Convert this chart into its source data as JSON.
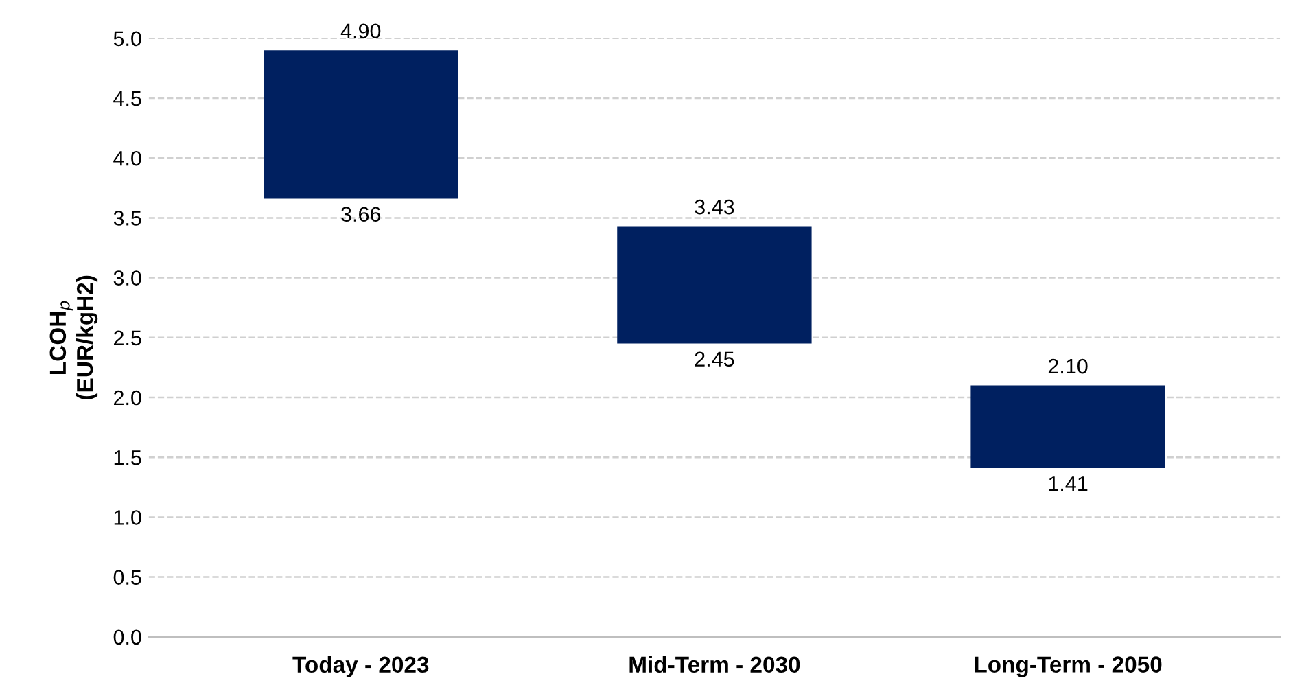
{
  "chart_data": {
    "type": "bar",
    "ylabel": "LCOH$_{p}$\n(EUR/kgH2)",
    "categories": [
      "Today - 2023",
      "Mid-Term - 2030",
      "Long-Term - 2050"
    ],
    "base": [
      3.66,
      2.45,
      1.41
    ],
    "values": [
      1.24,
      0.98,
      0.69
    ],
    "color": "#002060",
    "ylim": [
      0,
      5
    ],
    "yticks": [
      {
        "value": 0,
        "label": "0.0"
      },
      {
        "value": 0.5,
        "label": "0.5"
      },
      {
        "value": 1,
        "label": "1.0"
      },
      {
        "value": 1.5,
        "label": "1.5"
      },
      {
        "value": 2,
        "label": "2.0"
      },
      {
        "value": 2.5,
        "label": "2.5"
      },
      {
        "value": 3,
        "label": "3.0"
      },
      {
        "value": 3.5,
        "label": "3.5"
      },
      {
        "value": 4,
        "label": "4.0"
      },
      {
        "value": 4.5,
        "label": "4.5"
      },
      {
        "value": 5,
        "label": "5.0"
      }
    ],
    "grid": "y",
    "annotations": [
      {
        "text": "4.90",
        "x": "Today - 2023",
        "y": 4.9
      },
      {
        "text": "3.66",
        "x": "Today - 2023",
        "y": 3.66
      },
      {
        "text": "3.43",
        "x": "Mid-Term - 2030",
        "y": 3.43
      },
      {
        "text": "2.45",
        "x": "Mid-Term - 2030",
        "y": 2.45
      },
      {
        "text": "2.10",
        "x": "Long-Term - 2050",
        "y": 2.1
      },
      {
        "text": "1.41",
        "x": "Long-Term - 2050",
        "y": 1.41
      }
    ]
  }
}
